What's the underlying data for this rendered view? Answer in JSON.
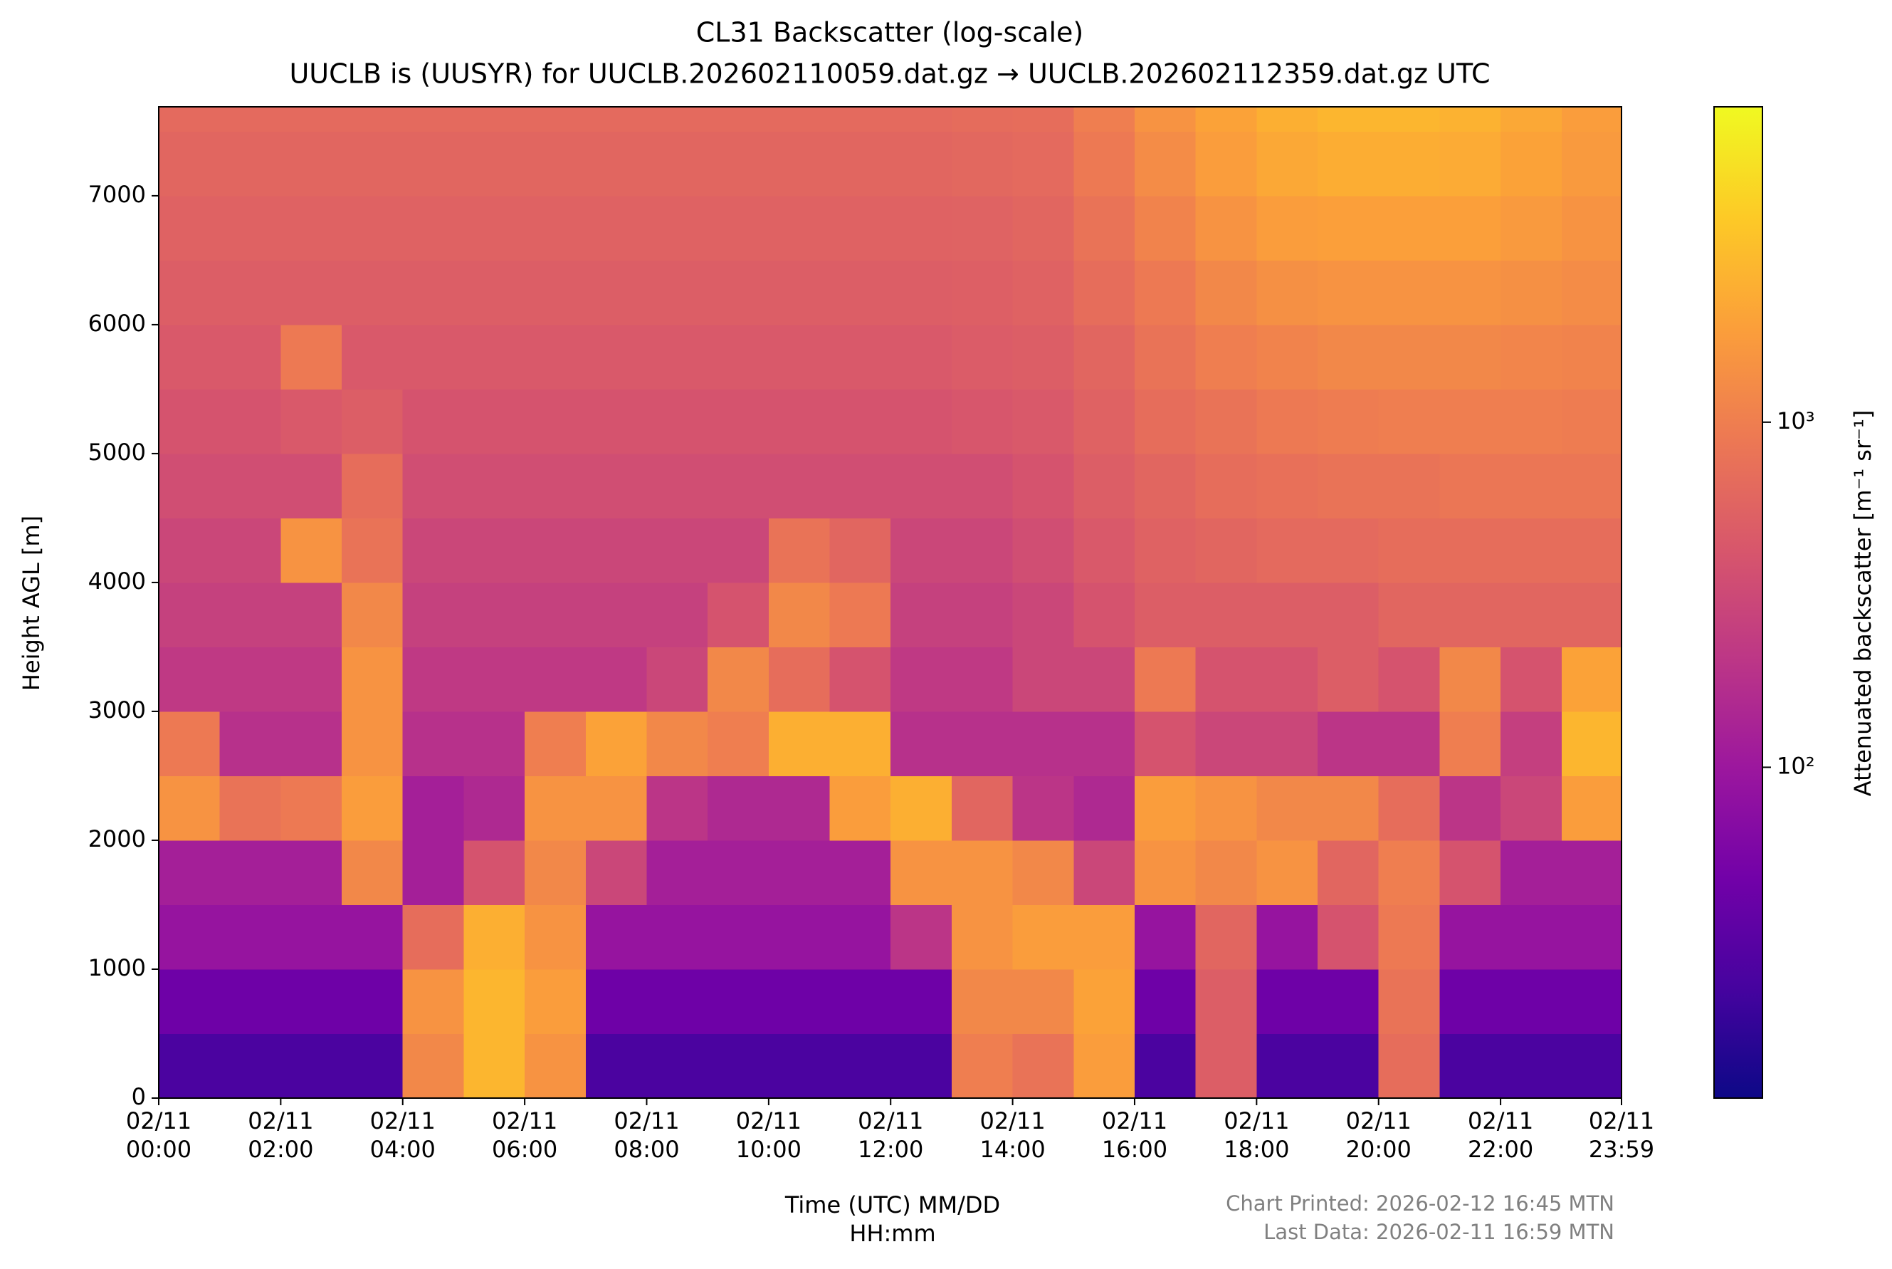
{
  "chart_data": {
    "type": "heatmap",
    "title": "CL31 Backscatter (log-scale)",
    "subtitle": "UUCLB is (UUSYR) for UUCLB.202602110059.dat.gz → UUCLB.202602112359.dat.gz UTC",
    "xlabel": "Time (UTC) MM/DD\nHH:mm",
    "ylabel": "Height AGL [m]",
    "colorbar_label": "Attenuated backscatter [m⁻¹ sr⁻¹]",
    "annotations": [
      "Chart Printed: 2026-02-12 16:45 MTN",
      "Last Data: 2026-02-11 16:59 MTN"
    ],
    "colormap": "plasma",
    "color_log_scale": true,
    "clim": [
      11,
      8200
    ],
    "cticks": [
      {
        "value": 100,
        "label": "10²"
      },
      {
        "value": 1000,
        "label": "10³"
      }
    ],
    "xlim": [
      0,
      23.983
    ],
    "xticks": [
      {
        "value": 0,
        "label": "02/11\n00:00"
      },
      {
        "value": 2,
        "label": "02/11\n02:00"
      },
      {
        "value": 4,
        "label": "02/11\n04:00"
      },
      {
        "value": 6,
        "label": "02/11\n06:00"
      },
      {
        "value": 8,
        "label": "02/11\n08:00"
      },
      {
        "value": 10,
        "label": "02/11\n10:00"
      },
      {
        "value": 12,
        "label": "02/11\n12:00"
      },
      {
        "value": 14,
        "label": "02/11\n14:00"
      },
      {
        "value": 16,
        "label": "02/11\n16:00"
      },
      {
        "value": 18,
        "label": "02/11\n18:00"
      },
      {
        "value": 20,
        "label": "02/11\n20:00"
      },
      {
        "value": 22,
        "label": "02/11\n22:00"
      },
      {
        "value": 23.983,
        "label": "02/11\n23:59"
      }
    ],
    "ylim": [
      0,
      7690
    ],
    "yticks": [
      0,
      1000,
      2000,
      3000,
      4000,
      5000,
      6000,
      7000
    ],
    "x_bins": [
      0,
      1,
      2,
      3,
      4,
      5,
      6,
      7,
      8,
      9,
      10,
      11,
      12,
      13,
      14,
      15,
      16,
      17,
      18,
      19,
      20,
      21,
      22,
      23,
      23.983
    ],
    "y_bins": [
      0,
      500,
      1000,
      1500,
      2000,
      2500,
      3000,
      3500,
      4000,
      4500,
      5000,
      5500,
      6000,
      6500,
      7000,
      7500,
      7690
    ],
    "values": [
      [
        25,
        25,
        25,
        25,
        1200,
        2800,
        1500,
        25,
        25,
        25,
        25,
        25,
        25,
        1000,
        800,
        1800,
        25,
        500,
        25,
        25,
        700,
        25,
        25,
        25
      ],
      [
        45,
        45,
        45,
        45,
        1500,
        2800,
        1800,
        45,
        45,
        45,
        45,
        45,
        45,
        1200,
        1200,
        2000,
        45,
        500,
        45,
        45,
        800,
        45,
        45,
        45
      ],
      [
        90,
        90,
        90,
        90,
        700,
        2500,
        1500,
        90,
        90,
        90,
        90,
        90,
        200,
        1500,
        1800,
        1800,
        90,
        600,
        90,
        400,
        900,
        90,
        90,
        90
      ],
      [
        120,
        120,
        120,
        1200,
        120,
        400,
        1200,
        300,
        120,
        120,
        120,
        120,
        1500,
        1500,
        1200,
        300,
        1500,
        1200,
        1500,
        600,
        1000,
        400,
        120,
        120
      ],
      [
        1500,
        800,
        900,
        1800,
        120,
        150,
        1500,
        1500,
        200,
        150,
        150,
        1800,
        2500,
        600,
        200,
        150,
        1800,
        1500,
        1200,
        1200,
        700,
        200,
        300,
        1800
      ],
      [
        900,
        180,
        180,
        1500,
        180,
        180,
        1000,
        2000,
        1200,
        1000,
        2500,
        2500,
        180,
        180,
        180,
        180,
        400,
        300,
        300,
        200,
        200,
        1000,
        250,
        2800
      ],
      [
        220,
        220,
        220,
        1500,
        220,
        220,
        220,
        220,
        300,
        1200,
        700,
        400,
        220,
        220,
        300,
        300,
        900,
        400,
        400,
        500,
        400,
        1200,
        400,
        2000
      ],
      [
        260,
        260,
        260,
        1200,
        260,
        260,
        260,
        260,
        260,
        400,
        1200,
        900,
        260,
        260,
        300,
        400,
        500,
        500,
        500,
        500,
        600,
        600,
        600,
        600
      ],
      [
        300,
        300,
        1500,
        800,
        300,
        300,
        300,
        300,
        300,
        300,
        800,
        600,
        300,
        300,
        350,
        450,
        550,
        600,
        650,
        650,
        700,
        700,
        700,
        700
      ],
      [
        350,
        350,
        350,
        700,
        350,
        350,
        350,
        350,
        350,
        350,
        350,
        350,
        350,
        350,
        400,
        500,
        600,
        700,
        750,
        800,
        800,
        850,
        850,
        850
      ],
      [
        400,
        400,
        450,
        500,
        400,
        400,
        400,
        400,
        400,
        400,
        400,
        400,
        400,
        420,
        450,
        550,
        700,
        800,
        900,
        950,
        1000,
        1000,
        1000,
        950
      ],
      [
        450,
        450,
        900,
        450,
        450,
        450,
        450,
        450,
        450,
        450,
        450,
        450,
        450,
        480,
        500,
        600,
        800,
        1000,
        1100,
        1200,
        1200,
        1200,
        1150,
        1100
      ],
      [
        500,
        500,
        500,
        500,
        500,
        500,
        500,
        500,
        500,
        500,
        500,
        500,
        500,
        520,
        550,
        700,
        900,
        1200,
        1400,
        1500,
        1500,
        1500,
        1400,
        1300
      ],
      [
        550,
        550,
        550,
        550,
        550,
        550,
        550,
        550,
        550,
        550,
        550,
        550,
        550,
        560,
        600,
        800,
        1100,
        1500,
        1800,
        1900,
        1900,
        1900,
        1700,
        1500
      ],
      [
        600,
        600,
        600,
        600,
        600,
        600,
        600,
        600,
        600,
        600,
        600,
        600,
        600,
        620,
        650,
        900,
        1300,
        1800,
        2200,
        2400,
        2400,
        2300,
        2000,
        1700
      ],
      [
        650,
        650,
        650,
        650,
        650,
        650,
        650,
        650,
        650,
        650,
        650,
        650,
        650,
        680,
        700,
        1000,
        1500,
        2000,
        2500,
        2800,
        2800,
        2600,
        2200,
        1800
      ]
    ]
  }
}
